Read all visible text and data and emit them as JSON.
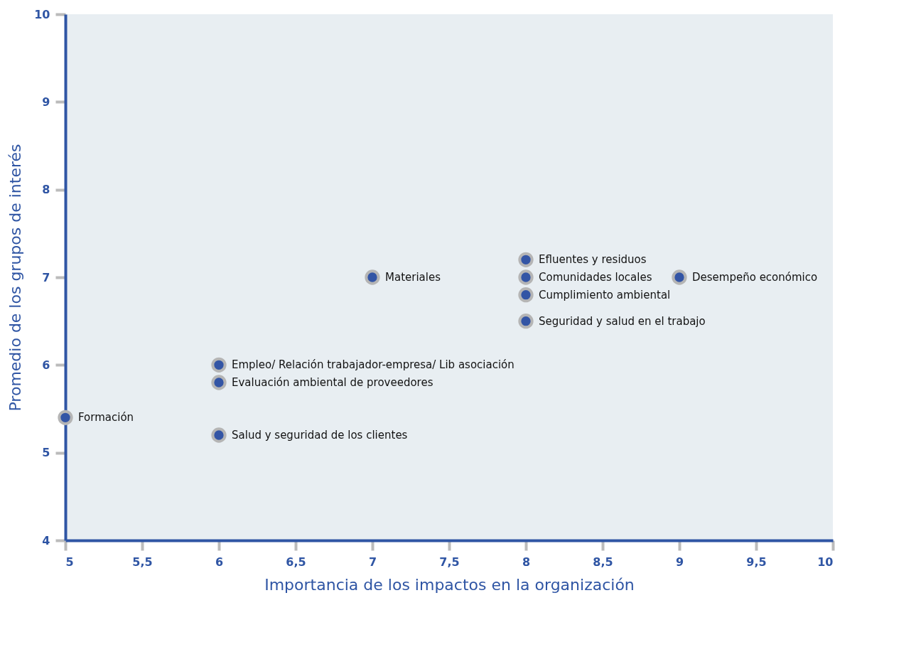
{
  "chart_data": {
    "type": "scatter",
    "xlabel": "Importancia de los impactos en la organización",
    "ylabel": "Promedio de los grupos de interés",
    "x": [
      5,
      6,
      6,
      6,
      7,
      8,
      8,
      8,
      8,
      9
    ],
    "values": [
      5.4,
      6.0,
      5.8,
      5.2,
      7.0,
      7.2,
      7.0,
      6.8,
      6.5,
      7.0
    ],
    "color": "#3355a5",
    "marker": "circle",
    "grid": false,
    "xlim": [
      5,
      10
    ],
    "ylim": [
      4,
      10
    ],
    "xticks": [
      5,
      {
        "value": 5.5,
        "label": "5,5"
      },
      6,
      {
        "value": 6.5,
        "label": "6,5"
      },
      7,
      {
        "value": 7.5,
        "label": "7,5"
      },
      8,
      {
        "value": 8.5,
        "label": "8,5"
      },
      9,
      {
        "value": 9.5,
        "label": "9,5"
      },
      10
    ],
    "yticks": [
      4,
      5,
      6,
      7,
      8,
      9,
      10
    ],
    "annotations": [
      {
        "text": "Formación",
        "x": 5,
        "y": 5.4
      },
      {
        "text": "Empleo/ Relación trabajador-empresa/ Lib asociación",
        "x": 6,
        "y": 6.0
      },
      {
        "text": "Evaluación ambiental de proveedores",
        "x": 6,
        "y": 5.8
      },
      {
        "text": "Salud y seguridad de los clientes",
        "x": 6,
        "y": 5.2
      },
      {
        "text": "Materiales",
        "x": 7,
        "y": 7.0
      },
      {
        "text": "Efluentes y residuos",
        "x": 8,
        "y": 7.2
      },
      {
        "text": "Comunidades locales",
        "x": 8,
        "y": 7.0
      },
      {
        "text": "Cumplimiento ambiental",
        "x": 8,
        "y": 6.8
      },
      {
        "text": "Seguridad y salud en el trabajo",
        "x": 8,
        "y": 6.5
      },
      {
        "text": "Desempeño económico",
        "x": 9,
        "y": 7.0
      }
    ]
  }
}
